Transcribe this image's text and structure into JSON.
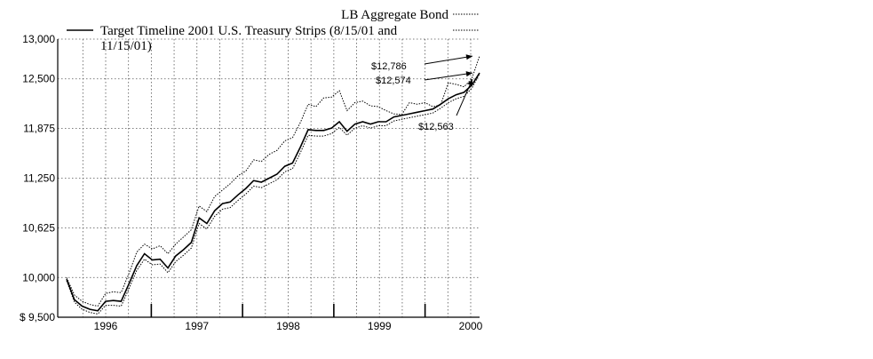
{
  "chart_data": {
    "type": "line",
    "currency_prefix": "$ ",
    "x_ticks": [
      "1996",
      "1997",
      "1998",
      "1999",
      "2000"
    ],
    "y_ticks": [
      "9,500",
      "10,000",
      "10,625",
      "11,250",
      "11,875",
      "12,500",
      "13,000"
    ],
    "ylim": [
      9500,
      13000
    ],
    "grid": true,
    "legend_placement": "top",
    "series": [
      {
        "name": "LB Aggregate Bond",
        "style": "dotted",
        "values": [
          10000,
          9780,
          9700,
          9660,
          9640,
          9800,
          9820,
          9810,
          10050,
          10320,
          10420,
          10360,
          10400,
          10300,
          10420,
          10510,
          10600,
          10900,
          10830,
          11020,
          11100,
          11180,
          11280,
          11340,
          11480,
          11460,
          11550,
          11600,
          11720,
          11760,
          11950,
          12180,
          12150,
          12260,
          12270,
          12350,
          12100,
          12200,
          12220,
          12160,
          12150,
          12100,
          12060,
          12050,
          12200,
          12180,
          12200,
          12150,
          12170,
          12450,
          12430,
          12400,
          12500,
          12786
        ]
      },
      {
        "name": "Target Timeline 2001 U.S. Treasury Strips (8/15/01 and 11/15/01)",
        "style": "solid",
        "values": [
          9980,
          9720,
          9640,
          9600,
          9580,
          9700,
          9710,
          9700,
          9920,
          10150,
          10300,
          10220,
          10230,
          10120,
          10270,
          10350,
          10440,
          10750,
          10680,
          10840,
          10930,
          10950,
          11040,
          11120,
          11220,
          11200,
          11250,
          11300,
          11400,
          11440,
          11640,
          11860,
          11850,
          11850,
          11880,
          11960,
          11840,
          11930,
          11960,
          11930,
          11960,
          11960,
          12020,
          12040,
          12060,
          12080,
          12100,
          12120,
          12180,
          12250,
          12300,
          12330,
          12420,
          12574
        ]
      },
      {
        "name": "",
        "style": "dotted",
        "values": [
          9960,
          9690,
          9600,
          9560,
          9540,
          9650,
          9650,
          9640,
          9860,
          10090,
          10230,
          10160,
          10170,
          10060,
          10200,
          10280,
          10370,
          10680,
          10610,
          10770,
          10860,
          10880,
          10970,
          11050,
          11150,
          11130,
          11180,
          11230,
          11330,
          11370,
          11570,
          11790,
          11780,
          11780,
          11810,
          11890,
          11790,
          11880,
          11910,
          11880,
          11910,
          11910,
          11970,
          11990,
          12010,
          12030,
          12050,
          12070,
          12130,
          12200,
          12250,
          12280,
          12380,
          12563
        ]
      }
    ],
    "legend": [
      {
        "label": "LB Aggregate Bond",
        "style": "dotted"
      },
      {
        "label": "Target Timeline 2001 U.S. Treasury Strips (8/15/01 and 11/15/01)",
        "style": "solid"
      }
    ],
    "annotations": [
      {
        "label": "$12,786",
        "value": 12786,
        "series": 0
      },
      {
        "label": "$12,574",
        "value": 12574,
        "series": 1
      },
      {
        "label": "$12,563",
        "value": 12563,
        "series": 2
      }
    ]
  }
}
